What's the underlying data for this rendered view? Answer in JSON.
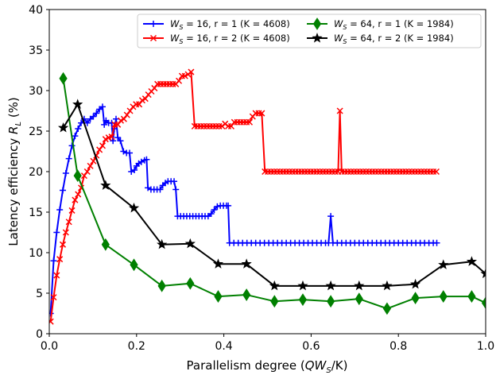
{
  "chart_data": {
    "type": "line",
    "xlabel_parts": {
      "text": "Parallelism degree (",
      "math": "QW",
      "sub": "S",
      "tail": "/K)"
    },
    "ylabel_parts": {
      "text": "Latency efficiency ",
      "math": "R",
      "sub": "L",
      "tail": " (%)"
    },
    "xlim": [
      0.0,
      1.0
    ],
    "ylim": [
      0,
      40
    ],
    "xticks": [
      "0.0",
      "0.2",
      "0.4",
      "0.6",
      "0.8",
      "1.0"
    ],
    "yticks": [
      "0",
      "5",
      "10",
      "15",
      "20",
      "25",
      "30",
      "35",
      "40"
    ],
    "legend_position": "top-right",
    "series": [
      {
        "label_math": "W",
        "label_sub": "S",
        "label_rest": " = 16, r = 1 (K = 4608)",
        "color": "#0000ff",
        "marker": "plus",
        "points": [
          [
            0.003,
            2.5
          ],
          [
            0.01,
            9.0
          ],
          [
            0.017,
            12.5
          ],
          [
            0.024,
            15.3
          ],
          [
            0.031,
            17.7
          ],
          [
            0.038,
            19.8
          ],
          [
            0.045,
            21.6
          ],
          [
            0.052,
            23.2
          ],
          [
            0.059,
            24.4
          ],
          [
            0.066,
            25.3
          ],
          [
            0.073,
            26.0
          ],
          [
            0.08,
            26.5
          ],
          [
            0.087,
            26.0
          ],
          [
            0.094,
            26.5
          ],
          [
            0.101,
            26.8
          ],
          [
            0.108,
            27.2
          ],
          [
            0.115,
            27.7
          ],
          [
            0.122,
            28.0
          ],
          [
            0.126,
            25.8
          ],
          [
            0.13,
            26.3
          ],
          [
            0.136,
            26.0
          ],
          [
            0.143,
            26.0
          ],
          [
            0.146,
            23.8
          ],
          [
            0.149,
            25.3
          ],
          [
            0.153,
            26.5
          ],
          [
            0.157,
            24.2
          ],
          [
            0.163,
            23.8
          ],
          [
            0.17,
            22.5
          ],
          [
            0.177,
            22.3
          ],
          [
            0.184,
            22.3
          ],
          [
            0.188,
            20.0
          ],
          [
            0.195,
            20.2
          ],
          [
            0.2,
            20.7
          ],
          [
            0.205,
            21.0
          ],
          [
            0.211,
            21.2
          ],
          [
            0.218,
            21.4
          ],
          [
            0.223,
            21.5
          ],
          [
            0.226,
            18.0
          ],
          [
            0.233,
            17.8
          ],
          [
            0.24,
            17.8
          ],
          [
            0.247,
            17.8
          ],
          [
            0.254,
            17.8
          ],
          [
            0.26,
            18.3
          ],
          [
            0.266,
            18.6
          ],
          [
            0.272,
            18.8
          ],
          [
            0.279,
            18.8
          ],
          [
            0.286,
            18.8
          ],
          [
            0.29,
            17.8
          ],
          [
            0.294,
            14.5
          ],
          [
            0.301,
            14.5
          ],
          [
            0.308,
            14.5
          ],
          [
            0.315,
            14.5
          ],
          [
            0.322,
            14.5
          ],
          [
            0.329,
            14.5
          ],
          [
            0.336,
            14.5
          ],
          [
            0.343,
            14.5
          ],
          [
            0.35,
            14.5
          ],
          [
            0.357,
            14.5
          ],
          [
            0.364,
            14.5
          ],
          [
            0.371,
            14.8
          ],
          [
            0.378,
            15.3
          ],
          [
            0.385,
            15.7
          ],
          [
            0.392,
            15.8
          ],
          [
            0.399,
            15.8
          ],
          [
            0.406,
            15.8
          ],
          [
            0.41,
            15.8
          ],
          [
            0.413,
            11.2
          ],
          [
            0.423,
            11.2
          ],
          [
            0.433,
            11.2
          ],
          [
            0.443,
            11.2
          ],
          [
            0.453,
            11.2
          ],
          [
            0.463,
            11.2
          ],
          [
            0.473,
            11.2
          ],
          [
            0.483,
            11.2
          ],
          [
            0.493,
            11.2
          ],
          [
            0.503,
            11.2
          ],
          [
            0.513,
            11.2
          ],
          [
            0.523,
            11.2
          ],
          [
            0.533,
            11.2
          ],
          [
            0.543,
            11.2
          ],
          [
            0.553,
            11.2
          ],
          [
            0.563,
            11.2
          ],
          [
            0.573,
            11.2
          ],
          [
            0.583,
            11.2
          ],
          [
            0.593,
            11.2
          ],
          [
            0.603,
            11.2
          ],
          [
            0.613,
            11.2
          ],
          [
            0.623,
            11.2
          ],
          [
            0.633,
            11.2
          ],
          [
            0.64,
            11.2
          ],
          [
            0.645,
            14.5
          ],
          [
            0.65,
            11.2
          ],
          [
            0.66,
            11.2
          ],
          [
            0.67,
            11.2
          ],
          [
            0.68,
            11.2
          ],
          [
            0.69,
            11.2
          ],
          [
            0.7,
            11.2
          ],
          [
            0.71,
            11.2
          ],
          [
            0.72,
            11.2
          ],
          [
            0.73,
            11.2
          ],
          [
            0.74,
            11.2
          ],
          [
            0.75,
            11.2
          ],
          [
            0.76,
            11.2
          ],
          [
            0.77,
            11.2
          ],
          [
            0.78,
            11.2
          ],
          [
            0.79,
            11.2
          ],
          [
            0.8,
            11.2
          ],
          [
            0.81,
            11.2
          ],
          [
            0.82,
            11.2
          ],
          [
            0.83,
            11.2
          ],
          [
            0.84,
            11.2
          ],
          [
            0.85,
            11.2
          ],
          [
            0.86,
            11.2
          ],
          [
            0.87,
            11.2
          ],
          [
            0.88,
            11.2
          ],
          [
            0.888,
            11.2
          ]
        ]
      },
      {
        "label_math": "W",
        "label_sub": "S",
        "label_rest": " = 16, r = 2 (K = 4608)",
        "color": "#ff0000",
        "marker": "x",
        "points": [
          [
            0.003,
            1.5
          ],
          [
            0.01,
            4.5
          ],
          [
            0.017,
            7.2
          ],
          [
            0.024,
            9.2
          ],
          [
            0.031,
            11.0
          ],
          [
            0.038,
            12.5
          ],
          [
            0.045,
            13.8
          ],
          [
            0.052,
            15.2
          ],
          [
            0.059,
            16.5
          ],
          [
            0.066,
            17.2
          ],
          [
            0.073,
            18.0
          ],
          [
            0.08,
            19.5
          ],
          [
            0.087,
            20.0
          ],
          [
            0.094,
            20.7
          ],
          [
            0.101,
            21.3
          ],
          [
            0.108,
            22.0
          ],
          [
            0.115,
            22.7
          ],
          [
            0.122,
            23.2
          ],
          [
            0.129,
            24.0
          ],
          [
            0.136,
            24.2
          ],
          [
            0.143,
            24.3
          ],
          [
            0.15,
            25.8
          ],
          [
            0.157,
            25.8
          ],
          [
            0.164,
            26.3
          ],
          [
            0.171,
            26.5
          ],
          [
            0.178,
            27.0
          ],
          [
            0.185,
            27.5
          ],
          [
            0.192,
            28.0
          ],
          [
            0.199,
            28.3
          ],
          [
            0.206,
            28.3
          ],
          [
            0.213,
            28.8
          ],
          [
            0.22,
            29.0
          ],
          [
            0.227,
            29.5
          ],
          [
            0.234,
            29.9
          ],
          [
            0.241,
            30.3
          ],
          [
            0.248,
            30.8
          ],
          [
            0.255,
            30.8
          ],
          [
            0.262,
            30.8
          ],
          [
            0.269,
            30.8
          ],
          [
            0.276,
            30.8
          ],
          [
            0.283,
            30.8
          ],
          [
            0.29,
            30.8
          ],
          [
            0.297,
            31.2
          ],
          [
            0.304,
            31.8
          ],
          [
            0.311,
            31.8
          ],
          [
            0.318,
            32.0
          ],
          [
            0.325,
            32.3
          ],
          [
            0.333,
            25.6
          ],
          [
            0.34,
            25.6
          ],
          [
            0.347,
            25.6
          ],
          [
            0.354,
            25.6
          ],
          [
            0.361,
            25.6
          ],
          [
            0.368,
            25.6
          ],
          [
            0.375,
            25.6
          ],
          [
            0.382,
            25.6
          ],
          [
            0.389,
            25.6
          ],
          [
            0.396,
            25.6
          ],
          [
            0.403,
            25.9
          ],
          [
            0.41,
            25.6
          ],
          [
            0.417,
            25.6
          ],
          [
            0.424,
            26.1
          ],
          [
            0.431,
            26.1
          ],
          [
            0.438,
            26.1
          ],
          [
            0.445,
            26.1
          ],
          [
            0.452,
            26.1
          ],
          [
            0.459,
            26.1
          ],
          [
            0.466,
            26.8
          ],
          [
            0.473,
            27.2
          ],
          [
            0.48,
            27.2
          ],
          [
            0.487,
            27.2
          ],
          [
            0.494,
            20.0
          ],
          [
            0.501,
            20.0
          ],
          [
            0.508,
            20.0
          ],
          [
            0.515,
            20.0
          ],
          [
            0.522,
            20.0
          ],
          [
            0.529,
            20.0
          ],
          [
            0.536,
            20.0
          ],
          [
            0.543,
            20.0
          ],
          [
            0.55,
            20.0
          ],
          [
            0.557,
            20.0
          ],
          [
            0.564,
            20.0
          ],
          [
            0.571,
            20.0
          ],
          [
            0.578,
            20.0
          ],
          [
            0.585,
            20.0
          ],
          [
            0.592,
            20.0
          ],
          [
            0.599,
            20.0
          ],
          [
            0.606,
            20.0
          ],
          [
            0.613,
            20.0
          ],
          [
            0.62,
            20.0
          ],
          [
            0.627,
            20.0
          ],
          [
            0.634,
            20.0
          ],
          [
            0.641,
            20.0
          ],
          [
            0.648,
            20.0
          ],
          [
            0.655,
            20.0
          ],
          [
            0.662,
            20.0
          ],
          [
            0.666,
            27.5
          ],
          [
            0.67,
            20.0
          ],
          [
            0.677,
            20.0
          ],
          [
            0.684,
            20.0
          ],
          [
            0.691,
            20.0
          ],
          [
            0.698,
            20.0
          ],
          [
            0.705,
            20.0
          ],
          [
            0.712,
            20.0
          ],
          [
            0.719,
            20.0
          ],
          [
            0.726,
            20.0
          ],
          [
            0.733,
            20.0
          ],
          [
            0.74,
            20.0
          ],
          [
            0.747,
            20.0
          ],
          [
            0.754,
            20.0
          ],
          [
            0.761,
            20.0
          ],
          [
            0.768,
            20.0
          ],
          [
            0.775,
            20.0
          ],
          [
            0.782,
            20.0
          ],
          [
            0.789,
            20.0
          ],
          [
            0.796,
            20.0
          ],
          [
            0.803,
            20.0
          ],
          [
            0.81,
            20.0
          ],
          [
            0.817,
            20.0
          ],
          [
            0.824,
            20.0
          ],
          [
            0.831,
            20.0
          ],
          [
            0.838,
            20.0
          ],
          [
            0.845,
            20.0
          ],
          [
            0.852,
            20.0
          ],
          [
            0.859,
            20.0
          ],
          [
            0.866,
            20.0
          ],
          [
            0.873,
            20.0
          ],
          [
            0.88,
            20.0
          ],
          [
            0.887,
            20.0
          ]
        ]
      },
      {
        "label_math": "W",
        "label_sub": "S",
        "label_rest": " = 64, r = 1 (K = 1984)",
        "color": "#008000",
        "marker": "diamond",
        "points": [
          [
            0.032,
            31.5
          ],
          [
            0.065,
            19.5
          ],
          [
            0.129,
            11.0
          ],
          [
            0.194,
            8.5
          ],
          [
            0.258,
            5.9
          ],
          [
            0.323,
            6.2
          ],
          [
            0.387,
            4.6
          ],
          [
            0.452,
            4.8
          ],
          [
            0.516,
            4.0
          ],
          [
            0.581,
            4.2
          ],
          [
            0.645,
            4.0
          ],
          [
            0.71,
            4.3
          ],
          [
            0.774,
            3.1
          ],
          [
            0.839,
            4.4
          ],
          [
            0.903,
            4.6
          ],
          [
            0.968,
            4.6
          ],
          [
            1.0,
            3.8
          ]
        ]
      },
      {
        "label_math": "W",
        "label_sub": "S",
        "label_rest": " = 64, r = 2 (K = 1984)",
        "color": "#000000",
        "marker": "star",
        "points": [
          [
            0.032,
            25.4
          ],
          [
            0.065,
            28.3
          ],
          [
            0.129,
            18.3
          ],
          [
            0.194,
            15.5
          ],
          [
            0.258,
            11.0
          ],
          [
            0.323,
            11.1
          ],
          [
            0.387,
            8.6
          ],
          [
            0.452,
            8.6
          ],
          [
            0.516,
            5.9
          ],
          [
            0.581,
            5.9
          ],
          [
            0.645,
            5.9
          ],
          [
            0.71,
            5.9
          ],
          [
            0.774,
            5.9
          ],
          [
            0.839,
            6.1
          ],
          [
            0.903,
            8.5
          ],
          [
            0.968,
            8.9
          ],
          [
            1.0,
            7.4
          ]
        ]
      }
    ]
  }
}
